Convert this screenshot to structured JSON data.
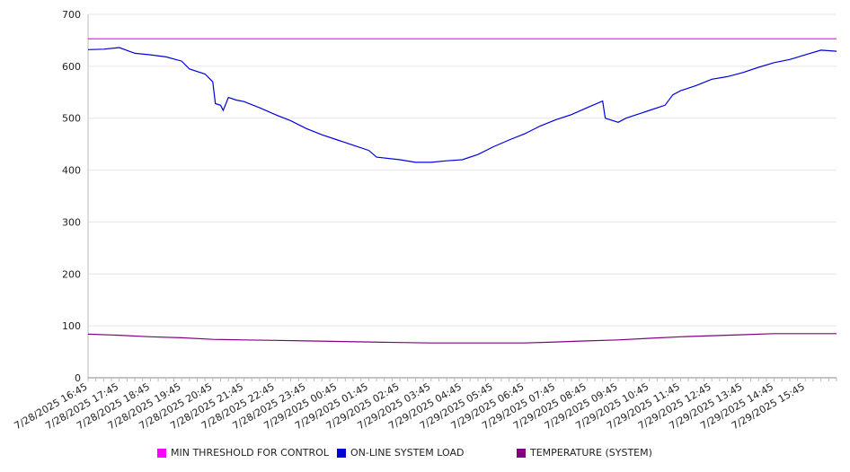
{
  "chart_data": {
    "type": "line",
    "title": "",
    "xlabel": "",
    "ylabel": "",
    "ylim": [
      0,
      700
    ],
    "yticks": [
      0,
      100,
      200,
      300,
      400,
      500,
      600,
      700
    ],
    "grid": true,
    "legend_position": "bottom",
    "x_tick_labels": [
      "7/28/2025 16:45",
      "7/28/2025 17:45",
      "7/28/2025 18:45",
      "7/28/2025 19:45",
      "7/28/2025 20:45",
      "7/28/2025 21:45",
      "7/28/2025 22:45",
      "7/28/2025 23:45",
      "7/29/2025 00:45",
      "7/29/2025 01:45",
      "7/29/2025 02:45",
      "7/29/2025 03:45",
      "7/29/2025 04:45",
      "7/29/2025 05:45",
      "7/29/2025 06:45",
      "7/29/2025 07:45",
      "7/29/2025 08:45",
      "7/29/2025 09:45",
      "7/29/2025 10:45",
      "7/29/2025 11:45",
      "7/29/2025 12:45",
      "7/29/2025 13:45",
      "7/29/2025 14:45",
      "7/29/2025 15:45"
    ],
    "x_start": "7/28/2025 16:45",
    "x_end": "7/29/2025 16:45",
    "series": [
      {
        "name": "MIN THRESHOLD FOR CONTROL",
        "color": "#ff00ff",
        "points": [
          [
            "7/28/2025 16:45",
            653
          ],
          [
            "7/29/2025 16:45",
            653
          ]
        ]
      },
      {
        "name": "ON-LINE SYSTEM LOAD",
        "color": "#0000dd",
        "points": [
          [
            "7/28/2025 16:45",
            632
          ],
          [
            "7/28/2025 17:15",
            633
          ],
          [
            "7/28/2025 17:45",
            636
          ],
          [
            "7/28/2025 18:15",
            625
          ],
          [
            "7/28/2025 18:45",
            622
          ],
          [
            "7/28/2025 19:15",
            618
          ],
          [
            "7/28/2025 19:45",
            610
          ],
          [
            "7/28/2025 20:00",
            595
          ],
          [
            "7/28/2025 20:30",
            585
          ],
          [
            "7/28/2025 20:45",
            570
          ],
          [
            "7/28/2025 20:50",
            528
          ],
          [
            "7/28/2025 21:00",
            525
          ],
          [
            "7/28/2025 21:05",
            515
          ],
          [
            "7/28/2025 21:15",
            540
          ],
          [
            "7/28/2025 21:30",
            535
          ],
          [
            "7/28/2025 21:45",
            532
          ],
          [
            "7/28/2025 22:15",
            520
          ],
          [
            "7/28/2025 22:45",
            507
          ],
          [
            "7/28/2025 23:15",
            495
          ],
          [
            "7/28/2025 23:45",
            480
          ],
          [
            "7/29/2025 00:15",
            468
          ],
          [
            "7/29/2025 00:45",
            458
          ],
          [
            "7/29/2025 01:15",
            448
          ],
          [
            "7/29/2025 01:45",
            438
          ],
          [
            "7/29/2025 02:00",
            425
          ],
          [
            "7/29/2025 02:45",
            420
          ],
          [
            "7/29/2025 03:15",
            415
          ],
          [
            "7/29/2025 03:45",
            415
          ],
          [
            "7/29/2025 04:15",
            418
          ],
          [
            "7/29/2025 04:45",
            420
          ],
          [
            "7/29/2025 05:15",
            430
          ],
          [
            "7/29/2025 05:45",
            445
          ],
          [
            "7/29/2025 06:15",
            458
          ],
          [
            "7/29/2025 06:45",
            470
          ],
          [
            "7/29/2025 07:15",
            485
          ],
          [
            "7/29/2025 07:45",
            497
          ],
          [
            "7/29/2025 08:15",
            507
          ],
          [
            "7/29/2025 08:45",
            520
          ],
          [
            "7/29/2025 09:15",
            533
          ],
          [
            "7/29/2025 09:20",
            500
          ],
          [
            "7/29/2025 09:45",
            492
          ],
          [
            "7/29/2025 10:00",
            500
          ],
          [
            "7/29/2025 10:30",
            510
          ],
          [
            "7/29/2025 10:45",
            515
          ],
          [
            "7/29/2025 11:15",
            525
          ],
          [
            "7/29/2025 11:30",
            545
          ],
          [
            "7/29/2025 11:45",
            553
          ],
          [
            "7/29/2025 12:15",
            563
          ],
          [
            "7/29/2025 12:45",
            575
          ],
          [
            "7/29/2025 13:15",
            580
          ],
          [
            "7/29/2025 13:45",
            588
          ],
          [
            "7/29/2025 14:15",
            598
          ],
          [
            "7/29/2025 14:45",
            607
          ],
          [
            "7/29/2025 15:15",
            613
          ],
          [
            "7/29/2025 15:45",
            622
          ],
          [
            "7/29/2025 16:15",
            631
          ],
          [
            "7/29/2025 16:45",
            629
          ]
        ]
      },
      {
        "name": "TEMPERATURE (SYSTEM)",
        "color": "#800080",
        "points": [
          [
            "7/28/2025 16:45",
            84
          ],
          [
            "7/28/2025 17:45",
            82
          ],
          [
            "7/28/2025 18:45",
            79
          ],
          [
            "7/28/2025 19:45",
            77
          ],
          [
            "7/28/2025 20:45",
            74
          ],
          [
            "7/28/2025 21:45",
            73
          ],
          [
            "7/28/2025 22:45",
            72
          ],
          [
            "7/28/2025 23:45",
            71
          ],
          [
            "7/29/2025 00:45",
            70
          ],
          [
            "7/29/2025 01:45",
            69
          ],
          [
            "7/29/2025 02:45",
            68
          ],
          [
            "7/29/2025 03:45",
            67
          ],
          [
            "7/29/2025 04:45",
            67
          ],
          [
            "7/29/2025 05:45",
            67
          ],
          [
            "7/29/2025 06:45",
            67
          ],
          [
            "7/29/2025 07:45",
            69
          ],
          [
            "7/29/2025 08:45",
            71
          ],
          [
            "7/29/2025 09:45",
            73
          ],
          [
            "7/29/2025 10:45",
            76
          ],
          [
            "7/29/2025 11:45",
            79
          ],
          [
            "7/29/2025 12:45",
            81
          ],
          [
            "7/29/2025 13:45",
            83
          ],
          [
            "7/29/2025 14:45",
            85
          ],
          [
            "7/29/2025 15:45",
            85
          ],
          [
            "7/29/2025 16:45",
            85
          ]
        ]
      }
    ]
  }
}
